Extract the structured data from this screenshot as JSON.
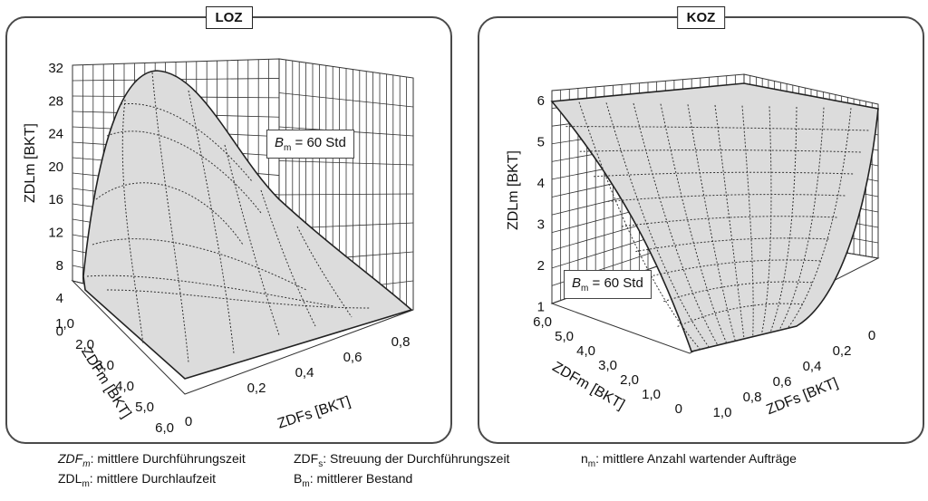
{
  "chart_data": [
    {
      "type": "surface-3d",
      "title": "LOZ",
      "zlabel": "ZDLm [BKT]",
      "xlabel": "ZDFs [BKT]",
      "ylabel": "ZDFm [BKT]",
      "z_ticks": [
        "32",
        "28",
        "24",
        "20",
        "16",
        "12",
        "8",
        "4",
        "0"
      ],
      "x_ticks": [
        "0",
        "0,2",
        "0,4",
        "0,6",
        "0,8"
      ],
      "y_ticks": [
        "1,0",
        "2,0",
        "3,0",
        "4,0",
        "5,0",
        "6,0"
      ],
      "zlim": [
        0,
        32
      ],
      "annotation": "Bm = 60 Std"
    },
    {
      "type": "surface-3d",
      "title": "KOZ",
      "zlabel": "ZDLm [BKT]",
      "xlabel": "ZDFs [BKT]",
      "ylabel": "ZDFm [BKT]",
      "z_ticks": [
        "6",
        "5",
        "4",
        "3",
        "2",
        "1"
      ],
      "x_ticks": [
        "1,0",
        "0,8",
        "0,6",
        "0,4",
        "0,2",
        "0"
      ],
      "y_ticks": [
        "6,0",
        "5,0",
        "4,0",
        "3,0",
        "2,0",
        "1,0",
        "0"
      ],
      "zlim": [
        1,
        6
      ],
      "annotation": "Bm = 60 Std"
    }
  ],
  "legend": [
    {
      "sym": "ZDF",
      "sub": "m",
      "text": ": mittlere Durchführungszeit"
    },
    {
      "sym": "ZDF",
      "sub": "s",
      "text": ": Streuung der Durchführungszeit"
    },
    {
      "sym": "n",
      "sub": "m",
      "text": ": mittlere Anzahl wartender Aufträge"
    },
    {
      "sym": "ZDL",
      "sub": "m",
      "text": ": mittlere Durchlaufzeit"
    },
    {
      "sym": "B",
      "sub": "m",
      "text": ": mittlerer Bestand"
    }
  ]
}
